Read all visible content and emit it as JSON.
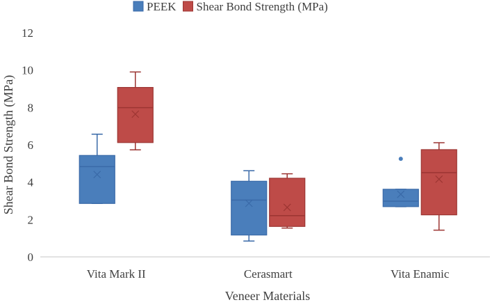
{
  "chart_data": {
    "type": "boxplot",
    "title": "",
    "xlabel": "Veneer Materials",
    "ylabel": "Shear Bond Strength (MPa)",
    "ylim": [
      0,
      12
    ],
    "yticks": [
      0,
      2,
      4,
      6,
      8,
      10,
      12
    ],
    "grid": false,
    "legend_position": "top",
    "categories": [
      "Vita Mark II",
      "Cerasmart",
      "Vita Enamic"
    ],
    "series": [
      {
        "name": "PEEK",
        "color": "#4a7ebb",
        "edge": "#3a6aa8",
        "boxes": [
          {
            "min": 2.86,
            "q1": 2.86,
            "median": 4.83,
            "q3": 5.43,
            "max": 6.57,
            "mean": 4.41,
            "outliers": []
          },
          {
            "min": 0.85,
            "q1": 1.17,
            "median": 3.04,
            "q3": 4.05,
            "max": 4.61,
            "mean": 2.87,
            "outliers": []
          },
          {
            "min": 2.69,
            "q1": 2.69,
            "median": 2.98,
            "q3": 3.62,
            "max": 3.62,
            "mean": 3.35,
            "outliers": [
              5.25
            ]
          }
        ]
      },
      {
        "name": "Shear Bond Strength (MPa)",
        "color": "#be4b48",
        "edge": "#9c3532",
        "boxes": [
          {
            "min": 5.73,
            "q1": 6.12,
            "median": 7.99,
            "q3": 9.07,
            "max": 9.9,
            "mean": 7.64,
            "outliers": []
          },
          {
            "min": 1.54,
            "q1": 1.63,
            "median": 2.21,
            "q3": 4.21,
            "max": 4.45,
            "mean": 2.65,
            "outliers": []
          },
          {
            "min": 1.43,
            "q1": 2.25,
            "median": 4.51,
            "q3": 5.74,
            "max": 6.11,
            "mean": 4.16,
            "outliers": []
          }
        ]
      }
    ]
  }
}
